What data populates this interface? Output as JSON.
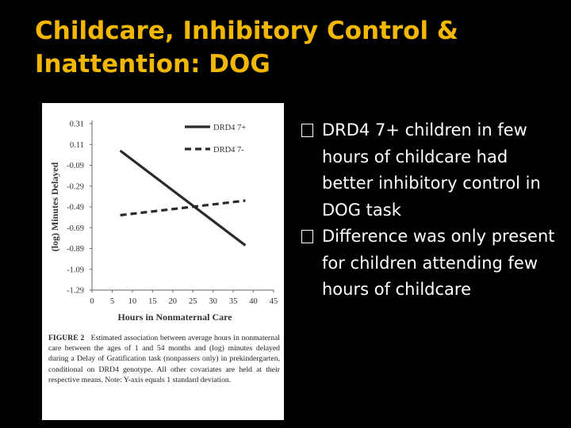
{
  "slide": {
    "title_line1": "Childcare, Inhibitory Control &",
    "title_line2": "Inattention: DOG",
    "accent_color": "#f2b705",
    "background_color": "#000000",
    "text_color": "#ffffff"
  },
  "bullets": [
    {
      "text": "DRD4 7+ children in few hours of childcare had better inhibitory control in DOG task",
      "icon": "square-bullet-icon"
    },
    {
      "text": "Difference was only present for children attending few hours of childcare",
      "icon": "square-bullet-icon"
    }
  ],
  "figure": {
    "caption_label": "FIGURE 2",
    "caption_text": "Estimated association between average hours in nonmaternal care between the ages of 1 and 54 months and (log) minutes delayed during a Delay of Gratification task (nonpassers only) in prekindergarten, conditional on DRD4 genotype. All other covariates are held at their respective means. Note: Y-axis equals 1 standard deviation."
  },
  "chart_data": {
    "type": "line",
    "xlabel": "Hours in Nonmaternal Care",
    "ylabel": "(log) Minutes Delayed",
    "xlim": [
      0,
      45
    ],
    "ylim": [
      -1.29,
      0.31
    ],
    "x_ticks": [
      "0",
      "5",
      "10",
      "15",
      "20",
      "25",
      "30",
      "35",
      "40",
      "45"
    ],
    "y_ticks": [
      "0.31",
      "0.11",
      "-0.09",
      "-0.29",
      "-0.49",
      "-0.69",
      "-0.89",
      "-1.09",
      "-1.29"
    ],
    "grid": false,
    "legend_position": "top-right",
    "series": [
      {
        "name": "DRD4 7+",
        "style": "solid",
        "x": [
          7,
          38
        ],
        "y": [
          0.05,
          -0.86
        ]
      },
      {
        "name": "DRD4 7-",
        "style": "dashed",
        "x": [
          7,
          38
        ],
        "y": [
          -0.57,
          -0.43
        ]
      }
    ]
  }
}
